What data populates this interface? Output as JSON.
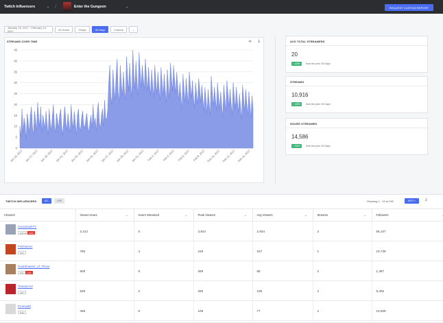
{
  "topbar": {
    "section": "Twitch Influencers",
    "game": "Enter the Gungeon",
    "request_button": "REQUEST CUSTOM REPORT"
  },
  "filters": {
    "date_range": "January 15, 2017 - February 14, 2017",
    "options": [
      "24 Hours",
      "7Days",
      "30 Days",
      "Custom"
    ],
    "selected": "30 Days",
    "dropdown": "⌄"
  },
  "chart_card": {
    "title": "STREAMS OVER TIME"
  },
  "chart_data": {
    "type": "area",
    "title": "STREAMS OVER TIME",
    "xlabel": "",
    "ylabel": "",
    "ylim": [
      0,
      45
    ],
    "y_ticks": [
      0,
      5,
      10,
      15,
      20,
      25,
      30,
      35,
      40,
      45
    ],
    "x_tick_labels": [
      "Jan 15, 2017",
      "Jan 17, 2017",
      "Jan 19, 2017",
      "Jan 21, 2017",
      "Jan 23, 2017",
      "Jan 25, 2017",
      "Jan 27, 2017",
      "Jan 29, 2017",
      "Jan 31, 2017",
      "Feb 2, 2017",
      "Feb 4, 2017",
      "Feb 6, 2017",
      "Feb 8, 2017",
      "Feb 10, 2017",
      "Feb 12, 2017",
      "Feb 14, 2017"
    ],
    "color": "#8a9be8",
    "values": [
      10,
      5,
      18,
      7,
      14,
      11,
      4,
      16,
      12,
      7,
      15,
      19,
      10,
      6,
      17,
      13,
      8,
      21,
      14,
      10,
      19,
      7,
      15,
      12,
      9,
      17,
      11,
      6,
      18,
      12,
      8,
      14,
      20,
      11,
      7,
      16,
      13,
      9,
      15,
      18,
      10,
      6,
      14,
      19,
      12,
      8,
      16,
      11,
      7,
      20,
      13,
      9,
      17,
      12,
      6,
      15,
      18,
      10,
      8,
      14,
      17,
      11,
      9,
      13,
      16,
      10,
      7,
      12,
      15,
      9,
      20,
      11,
      14,
      8,
      16,
      21,
      12,
      9,
      15,
      18,
      10,
      22,
      14,
      13,
      18,
      30,
      38,
      24,
      20,
      36,
      28,
      22,
      33,
      41,
      26,
      21,
      38,
      30,
      24,
      35,
      27,
      22,
      42,
      33,
      26,
      39,
      29,
      23,
      45,
      34,
      27,
      40,
      31,
      24,
      44,
      35,
      28,
      38,
      32,
      27,
      41,
      33,
      26,
      37,
      30,
      24,
      36,
      29,
      23,
      38,
      31,
      25,
      35,
      28,
      22,
      37,
      30,
      24,
      34,
      27,
      21,
      36,
      29,
      23,
      39,
      32,
      26,
      38,
      31,
      25,
      35,
      28,
      22,
      30,
      24,
      18,
      34,
      27,
      21,
      32,
      26,
      20,
      35,
      29,
      23,
      31,
      24,
      18,
      30,
      25,
      20,
      32,
      27,
      21,
      29,
      23,
      17,
      28,
      22,
      16,
      27,
      21,
      15,
      33,
      26,
      19,
      28,
      23,
      17,
      30,
      24,
      18,
      26,
      20,
      14,
      29,
      23,
      17,
      31,
      25,
      19,
      27,
      21,
      15,
      30,
      24,
      18,
      28,
      22,
      16,
      25,
      19,
      13,
      29,
      23,
      17,
      27,
      21,
      15,
      26,
      20,
      14,
      24,
      18
    ]
  },
  "stats": [
    {
      "title": "AVG TOTAL STREAMERS",
      "value": "20",
      "badge": "↑ 143%",
      "note": "from the prior 30 Days"
    },
    {
      "title": "STREAMS",
      "value": "10,916",
      "badge": "↑ 145%",
      "note": "from the prior 30 Days"
    },
    {
      "title": "HOURS STREAMED",
      "value": "14,586",
      "badge": "↑ 132%",
      "note": "from the prior 30 Days"
    }
  ],
  "table": {
    "title": "TWITCH INFLUENCERS",
    "tab_all": "ALL",
    "tab_live": "LIVE",
    "showing": "Showing 1 - 15 of 292",
    "next": "NEXT >",
    "columns": [
      "Channel",
      "Viewer Hours",
      "Hours Streamed",
      "Peak Viewers",
      "Avg Viewers",
      "Streams",
      "Followers"
    ],
    "rows": [
      {
        "channel": "moondouikTV",
        "lang": "ENGSH",
        "live": "LIVE",
        "viewer_hours": "2,212",
        "hours_streamed": "0",
        "peak": "3,924",
        "avg": "2,834",
        "streams": "2",
        "followers": "56,107",
        "avatar": "#9aa3b5"
      },
      {
        "channel": "FetiGames",
        "lang": "SPA",
        "live": "",
        "viewer_hours": "755",
        "hours_streamed": "4",
        "peak": "248",
        "avg": "157",
        "streams": "1",
        "followers": "23,738",
        "avatar": "#c0471f"
      },
      {
        "channel": "Guardmaster_of_Throw",
        "lang": "ETA",
        "live": "LIVE",
        "viewer_hours": "609",
        "hours_streamed": "9",
        "peak": "289",
        "avg": "65",
        "streams": "2",
        "followers": "1,387",
        "avatar": "#a88060"
      },
      {
        "channel": "TomaneYol",
        "lang": "ART",
        "live": "",
        "viewer_hours": "539",
        "hours_streamed": "2",
        "peak": "280",
        "avg": "195",
        "streams": "2",
        "followers": "9,405",
        "avatar": "#b8262c"
      },
      {
        "channel": "Promoidd",
        "lang": "RSH",
        "live": "",
        "viewer_hours": "468",
        "hours_streamed": "8",
        "peak": "109",
        "avg": "77",
        "streams": "2",
        "followers": "10,509",
        "avatar": "#d9d9d9"
      }
    ]
  }
}
